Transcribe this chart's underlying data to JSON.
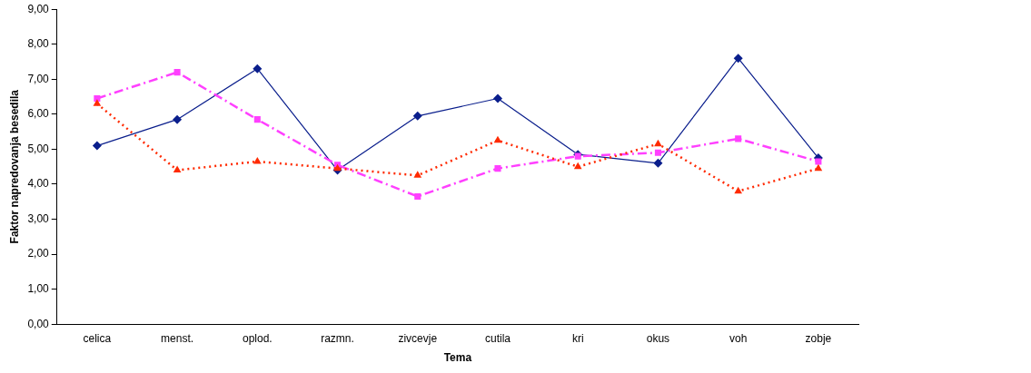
{
  "chart_data": {
    "type": "line",
    "xlabel": "Tema",
    "ylabel": "Faktor napredovanja besedila",
    "categories": [
      "celica",
      "menst.",
      "oplod.",
      "razmn.",
      "zivcevje",
      "cutila",
      "kri",
      "okus",
      "voh",
      "zobje"
    ],
    "series": [
      {
        "color": "#0a1e8c",
        "marker": "diamond",
        "line_style": "solid",
        "values": [
          5.1,
          5.85,
          7.3,
          4.4,
          5.95,
          6.45,
          4.85,
          4.6,
          7.6,
          4.75
        ]
      },
      {
        "color": "#ff40ff",
        "marker": "square",
        "line_style": "dashed",
        "values": [
          6.45,
          7.2,
          5.85,
          4.55,
          3.65,
          4.45,
          4.8,
          4.9,
          5.3,
          4.65
        ]
      },
      {
        "color": "#ff2a00",
        "marker": "triangle",
        "line_style": "dotted",
        "values": [
          6.3,
          4.4,
          4.65,
          4.45,
          4.25,
          5.25,
          4.5,
          5.15,
          3.8,
          4.45
        ]
      }
    ],
    "ylim": [
      0,
      9
    ],
    "yticks": [
      {
        "value": 0,
        "label": "0,00"
      },
      {
        "value": 1,
        "label": "1,00"
      },
      {
        "value": 2,
        "label": "2,00"
      },
      {
        "value": 3,
        "label": "3,00"
      },
      {
        "value": 4,
        "label": "4,00"
      },
      {
        "value": 5,
        "label": "5,00"
      },
      {
        "value": 6,
        "label": "6,00"
      },
      {
        "value": 7,
        "label": "7,00"
      },
      {
        "value": 8,
        "label": "8,00"
      },
      {
        "value": 9,
        "label": "9,00"
      }
    ],
    "grid": false,
    "legend": false
  }
}
